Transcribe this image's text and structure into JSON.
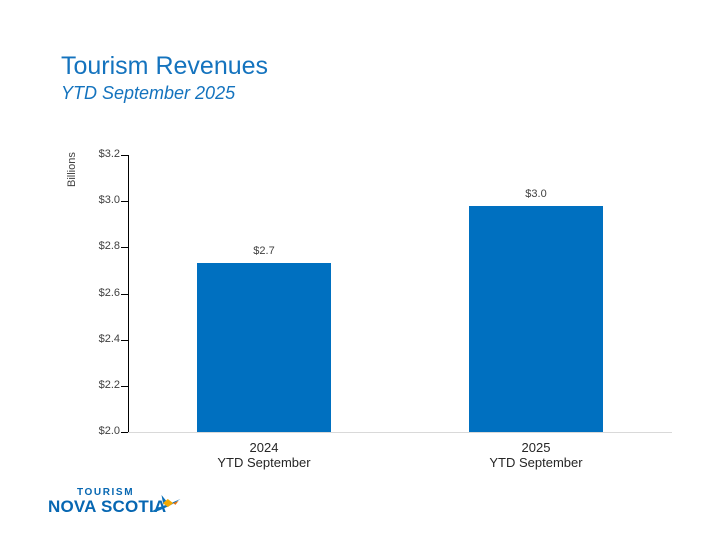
{
  "header": {
    "title": "Tourism Revenues",
    "subtitle": "YTD September 2025"
  },
  "chart_data": {
    "type": "bar",
    "title": "Tourism Revenues",
    "subtitle": "YTD September 2025",
    "xlabel": "",
    "ylabel": "Billions",
    "ylim": [
      2.0,
      3.2
    ],
    "ytick_step": 0.2,
    "yticks": [
      {
        "value": 2.0,
        "label": "$2.0"
      },
      {
        "value": 2.2,
        "label": "$2.2"
      },
      {
        "value": 2.4,
        "label": "$2.4"
      },
      {
        "value": 2.6,
        "label": "$2.6"
      },
      {
        "value": 2.8,
        "label": "$2.8"
      },
      {
        "value": 3.0,
        "label": "$3.0"
      },
      {
        "value": 3.2,
        "label": "$3.2"
      }
    ],
    "categories": [
      {
        "line1": "2024",
        "line2": "YTD September"
      },
      {
        "line1": "2025",
        "line2": "YTD September"
      }
    ],
    "values": [
      2.73,
      2.98
    ],
    "data_labels": [
      "$2.7",
      "$3.0"
    ],
    "bar_color": "#0070C0",
    "grid": false,
    "legend": false
  },
  "logo": {
    "top_text": "TOURISM",
    "bottom_text": "NOVA SCOTIA",
    "text_color": "#0767B2",
    "bird_blue": "#0B6FB7",
    "bird_yellow": "#F2A900",
    "bird_orange": "#E8740C"
  },
  "colors": {
    "title_blue": "#1473BE",
    "bar_blue": "#0070C0",
    "axis_text": "#404040",
    "axis_line": "#000000",
    "baseline_gray": "#D9D9D9"
  }
}
